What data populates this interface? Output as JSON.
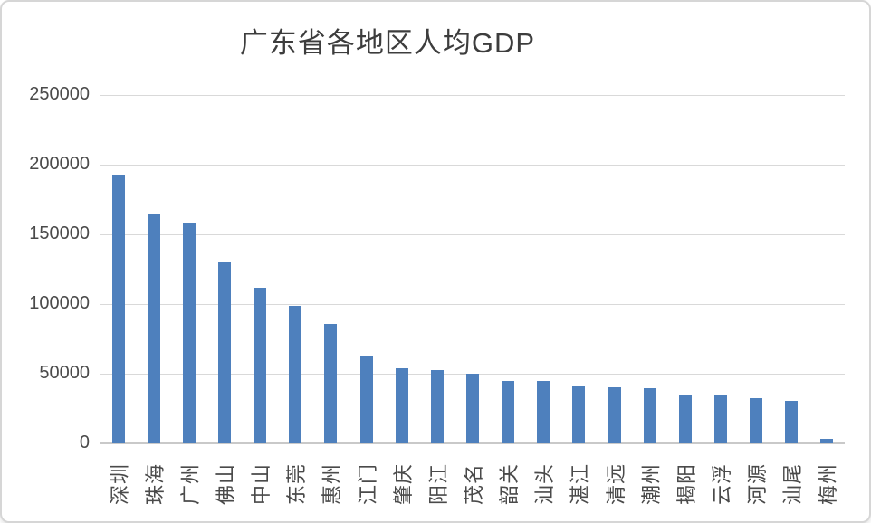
{
  "chart_data": {
    "type": "bar",
    "title": "广东省各地区人均GDP",
    "xlabel": "",
    "ylabel": "",
    "categories": [
      "深圳",
      "珠海",
      "广州",
      "佛山",
      "中山",
      "东莞",
      "惠州",
      "江门",
      "肇庆",
      "阳江",
      "茂名",
      "韶关",
      "汕头",
      "湛江",
      "清远",
      "潮州",
      "揭阳",
      "云浮",
      "河源",
      "汕尾",
      "梅州"
    ],
    "values": [
      193000,
      165000,
      157500,
      130000,
      111500,
      98500,
      86000,
      63000,
      54000,
      52500,
      50000,
      45000,
      44700,
      41000,
      40300,
      39600,
      35200,
      34300,
      32700,
      30500,
      3000
    ],
    "ylim": [
      0,
      250000
    ],
    "yticks": [
      0,
      50000,
      100000,
      150000,
      200000,
      250000
    ],
    "grid": true,
    "legend_position": "none",
    "bar_color": "#4e80bd",
    "gridline_color": "#d9d9d9",
    "text_color": "#4a4a4a",
    "title_color": "#3d3d3d"
  }
}
